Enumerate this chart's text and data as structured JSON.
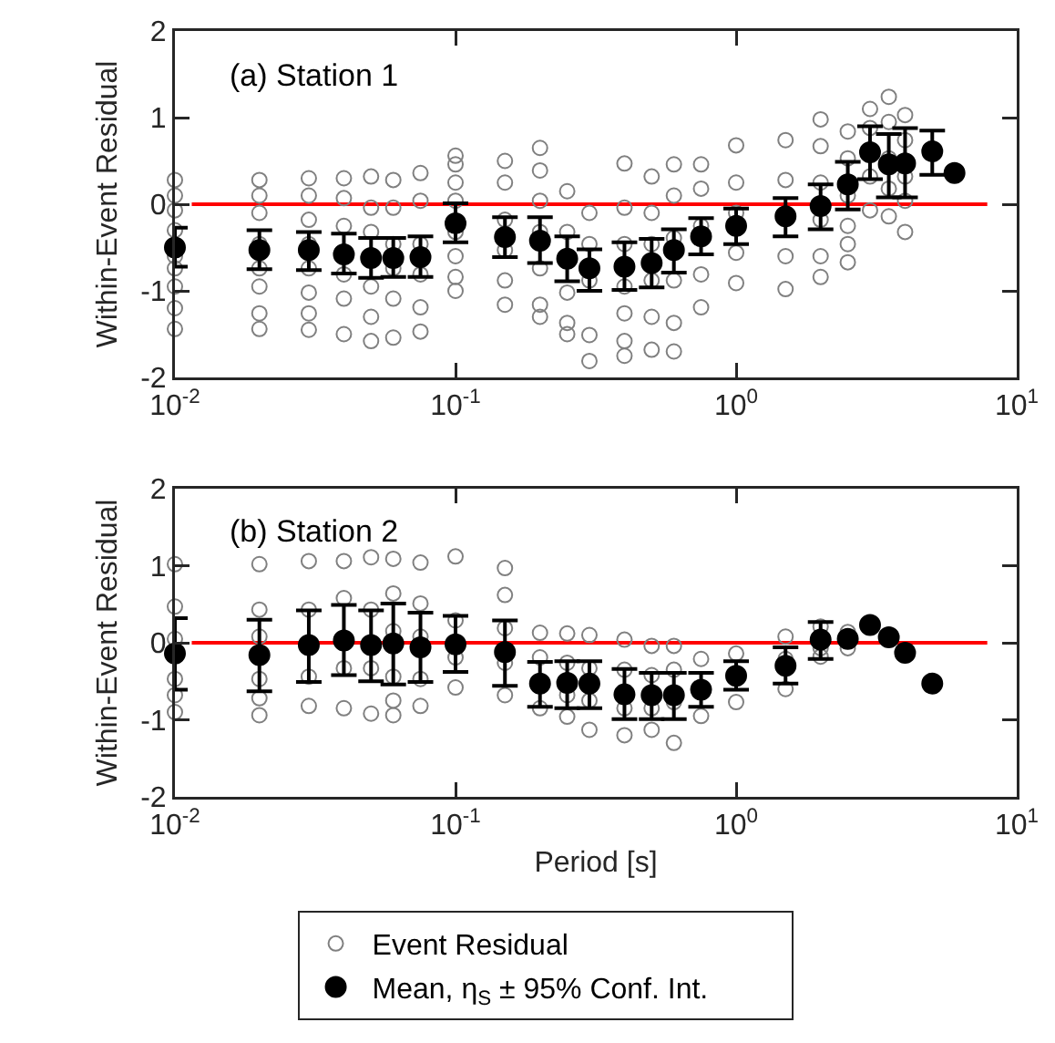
{
  "chart_data": [
    {
      "type": "scatter",
      "ylabel": "Within-Event Residual",
      "annotations": [
        "(a) Station 1"
      ],
      "log": "x",
      "grid": false,
      "legend": false,
      "marker": "circle",
      "xlim": [
        0.01,
        10
      ],
      "xticks": [
        {
          "value": 0.01,
          "label": "10$^{-2}$"
        },
        {
          "value": 0.1,
          "label": "10$^{-1}$"
        },
        {
          "value": 1,
          "label": "10$^{0}$"
        },
        {
          "value": 10,
          "label": "10$^{1}$"
        }
      ],
      "ylim": [
        -2,
        2
      ],
      "yticks": [
        -2,
        -1,
        0,
        1,
        2
      ],
      "ref_lines": [
        {
          "axis": "y",
          "value": 0,
          "color": "#ff0000"
        }
      ],
      "series": [
        {
          "color": "#808080",
          "x": [
            0.01,
            0.01,
            0.01,
            0.01,
            0.01,
            0.01,
            0.01,
            0.01,
            0.01,
            0.02,
            0.02,
            0.02,
            0.02,
            0.02,
            0.02,
            0.02,
            0.02,
            0.03,
            0.03,
            0.03,
            0.03,
            0.03,
            0.03,
            0.03,
            0.03,
            0.04,
            0.04,
            0.04,
            0.04,
            0.04,
            0.04,
            0.05,
            0.05,
            0.05,
            0.05,
            0.05,
            0.05,
            0.06,
            0.06,
            0.06,
            0.06,
            0.06,
            0.06,
            0.075,
            0.075,
            0.075,
            0.075,
            0.075,
            0.075,
            0.1,
            0.1,
            0.1,
            0.1,
            0.1,
            0.1,
            0.1,
            0.1,
            0.15,
            0.15,
            0.15,
            0.15,
            0.15,
            0.15,
            0.2,
            0.2,
            0.2,
            0.2,
            0.2,
            0.2,
            0.2,
            0.25,
            0.25,
            0.25,
            0.25,
            0.25,
            0.3,
            0.3,
            0.3,
            0.3,
            0.3,
            0.4,
            0.4,
            0.4,
            0.4,
            0.4,
            0.4,
            0.4,
            0.5,
            0.5,
            0.5,
            0.5,
            0.5,
            0.5,
            0.6,
            0.6,
            0.6,
            0.6,
            0.6,
            0.6,
            0.75,
            0.75,
            0.75,
            0.75,
            0.75,
            1,
            1,
            1,
            1,
            1,
            1.5,
            1.5,
            1.5,
            1.5,
            2,
            2,
            2,
            2,
            2,
            2,
            2.5,
            2.5,
            2.5,
            2.5,
            2.5,
            2.5,
            3,
            3,
            3,
            3,
            3.5,
            3.5,
            3.5,
            3.5,
            3.5,
            4,
            4,
            4,
            4,
            4
          ],
          "values": [
            0.28,
            0.1,
            -0.07,
            -0.3,
            -0.6,
            -0.74,
            -0.95,
            -1.2,
            -1.44,
            0.28,
            0.1,
            -0.1,
            -0.46,
            -0.74,
            -0.95,
            -1.26,
            -1.44,
            0.3,
            0.1,
            -0.18,
            -0.46,
            -0.74,
            -1.02,
            -1.26,
            -1.45,
            0.3,
            0.07,
            -0.25,
            -0.81,
            -1.09,
            -1.5,
            0.32,
            -0.04,
            -0.32,
            -0.95,
            -1.3,
            -1.58,
            0.28,
            -0.04,
            -0.46,
            -0.74,
            -1.09,
            -1.54,
            0.36,
            0.04,
            -0.46,
            -0.81,
            -1.19,
            -1.47,
            0.56,
            0.46,
            0.25,
            0.04,
            -0.32,
            -0.6,
            -0.84,
            -1.0,
            0.5,
            0.25,
            -0.18,
            -0.53,
            -0.88,
            -1.16,
            0.65,
            0.39,
            0.04,
            -0.32,
            -0.74,
            -1.16,
            -1.3,
            0.15,
            -0.32,
            -1.02,
            -1.37,
            -1.5,
            -0.1,
            -0.46,
            -0.88,
            -1.51,
            -1.81,
            0.47,
            -0.04,
            -0.46,
            -0.95,
            -1.26,
            -1.58,
            -1.75,
            0.32,
            -0.1,
            -0.46,
            -0.88,
            -1.3,
            -1.68,
            0.46,
            0.1,
            -0.39,
            -0.88,
            -1.37,
            -1.7,
            0.46,
            0.18,
            -0.25,
            -0.81,
            -1.19,
            0.68,
            0.25,
            -0.1,
            -0.56,
            -0.91,
            0.74,
            0.28,
            -0.6,
            -0.98,
            0.98,
            0.67,
            0.25,
            -0.18,
            -0.6,
            -0.84,
            0.84,
            0.53,
            0.1,
            -0.25,
            -0.46,
            -0.67,
            1.1,
            0.88,
            0.32,
            -0.07,
            1.24,
            0.95,
            0.53,
            0.18,
            -0.14,
            1.03,
            0.74,
            0.32,
            0.04,
            -0.32
          ]
        },
        {
          "color": "#000000",
          "x": [
            0.01,
            0.02,
            0.03,
            0.04,
            0.05,
            0.06,
            0.075,
            0.1,
            0.15,
            0.2,
            0.25,
            0.3,
            0.4,
            0.5,
            0.6,
            0.75,
            1,
            1.5,
            2,
            2.5,
            3,
            3.5,
            4,
            5,
            6
          ],
          "values": [
            -0.5,
            -0.53,
            -0.53,
            -0.58,
            -0.62,
            -0.62,
            -0.61,
            -0.22,
            -0.38,
            -0.42,
            -0.63,
            -0.74,
            -0.72,
            -0.68,
            -0.53,
            -0.37,
            -0.25,
            -0.14,
            -0.02,
            0.23,
            0.6,
            0.46,
            0.47,
            0.61,
            0.36
          ],
          "errors": [
            [
              -0.72,
              -0.27
            ],
            [
              -0.75,
              -0.3
            ],
            [
              -0.76,
              -0.32
            ],
            [
              -0.8,
              -0.34
            ],
            [
              -0.85,
              -0.39
            ],
            [
              -0.84,
              -0.39
            ],
            [
              -0.84,
              -0.37
            ],
            [
              -0.44,
              0.01
            ],
            [
              -0.61,
              -0.15
            ],
            [
              -0.68,
              -0.15
            ],
            [
              -0.89,
              -0.37
            ],
            [
              -1.0,
              -0.52
            ],
            [
              -0.99,
              -0.44
            ],
            [
              -0.96,
              -0.4
            ],
            [
              -0.79,
              -0.29
            ],
            [
              -0.58,
              -0.16
            ],
            [
              -0.46,
              -0.05
            ],
            [
              -0.37,
              0.07
            ],
            [
              -0.29,
              0.23
            ],
            [
              -0.06,
              0.49
            ],
            [
              0.29,
              0.9
            ],
            [
              0.08,
              0.81
            ],
            [
              0.08,
              0.88
            ],
            [
              0.34,
              0.85
            ],
            null
          ]
        }
      ]
    },
    {
      "type": "scatter",
      "xlabel": "Period [s]",
      "ylabel": "Within-Event Residual",
      "annotations": [
        "(b) Station 2"
      ],
      "log": "x",
      "grid": false,
      "legend": "bottom",
      "marker": "circle",
      "xlim": [
        0.01,
        10
      ],
      "xticks": [
        {
          "value": 0.01,
          "label": "10$^{-2}$"
        },
        {
          "value": 0.1,
          "label": "10$^{-1}$"
        },
        {
          "value": 1,
          "label": "10$^{0}$"
        },
        {
          "value": 10,
          "label": "10$^{1}$"
        }
      ],
      "ylim": [
        -2,
        2
      ],
      "yticks": [
        -2,
        -1,
        0,
        1,
        2
      ],
      "ref_lines": [
        {
          "axis": "y",
          "value": 0,
          "color": "#ff0000"
        }
      ],
      "series": [
        {
          "name": "Event Residual",
          "color": "#808080",
          "x": [
            0.01,
            0.01,
            0.01,
            0.01,
            0.01,
            0.01,
            0.02,
            0.02,
            0.02,
            0.02,
            0.02,
            0.02,
            0.03,
            0.03,
            0.03,
            0.03,
            0.04,
            0.04,
            0.04,
            0.04,
            0.05,
            0.05,
            0.05,
            0.05,
            0.06,
            0.06,
            0.06,
            0.06,
            0.06,
            0.06,
            0.075,
            0.075,
            0.075,
            0.075,
            0.075,
            0.1,
            0.1,
            0.1,
            0.1,
            0.15,
            0.15,
            0.15,
            0.15,
            0.15,
            0.2,
            0.2,
            0.2,
            0.25,
            0.25,
            0.25,
            0.25,
            0.3,
            0.3,
            0.3,
            0.3,
            0.4,
            0.4,
            0.4,
            0.4,
            0.5,
            0.5,
            0.5,
            0.5,
            0.6,
            0.6,
            0.6,
            0.6,
            0.75,
            0.75,
            1,
            1,
            1.5,
            1.5,
            1.5,
            2,
            2,
            2,
            2.5,
            2.5
          ],
          "values": [
            1.02,
            0.47,
            0.05,
            -0.47,
            -0.68,
            -0.9,
            1.02,
            0.43,
            0.08,
            -0.47,
            -0.72,
            -0.94,
            1.06,
            0.43,
            -0.44,
            -0.82,
            1.06,
            0.58,
            -0.33,
            -0.85,
            1.11,
            0.43,
            -0.33,
            -0.92,
            1.09,
            0.64,
            0.15,
            -0.44,
            -0.75,
            -0.94,
            1.04,
            0.51,
            0.08,
            -0.47,
            -0.82,
            1.12,
            0.29,
            -0.19,
            -0.58,
            0.97,
            0.62,
            0.19,
            -0.26,
            -0.68,
            0.13,
            -0.19,
            -0.85,
            0.12,
            -0.26,
            -0.68,
            -0.96,
            0.1,
            -0.33,
            -0.75,
            -1.13,
            0.04,
            -0.35,
            -0.85,
            -1.2,
            -0.04,
            -0.42,
            -0.85,
            -1.13,
            -0.04,
            -0.35,
            -0.77,
            -1.3,
            -0.21,
            -0.95,
            -0.14,
            -0.77,
            0.08,
            -0.21,
            -0.6,
            0.21,
            -0.07,
            -0.18,
            0.14,
            -0.07
          ]
        },
        {
          "name": "Mean, η$_{S}$ ± 95% Conf. Int.",
          "color": "#000000",
          "x": [
            0.01,
            0.02,
            0.03,
            0.04,
            0.05,
            0.06,
            0.075,
            0.1,
            0.15,
            0.2,
            0.25,
            0.3,
            0.4,
            0.5,
            0.6,
            0.75,
            1,
            1.5,
            2,
            2.5,
            3,
            3.5,
            4,
            5
          ],
          "values": [
            -0.14,
            -0.16,
            -0.03,
            0.03,
            -0.03,
            -0.01,
            -0.06,
            -0.02,
            -0.12,
            -0.53,
            -0.52,
            -0.53,
            -0.67,
            -0.68,
            -0.68,
            -0.61,
            -0.43,
            -0.3,
            0.04,
            0.05,
            0.23,
            0.07,
            -0.13,
            -0.53
          ],
          "errors": [
            [
              -0.61,
              0.32
            ],
            [
              -0.63,
              0.3
            ],
            [
              -0.51,
              0.42
            ],
            [
              -0.42,
              0.49
            ],
            [
              -0.5,
              0.42
            ],
            [
              -0.54,
              0.51
            ],
            [
              -0.51,
              0.39
            ],
            [
              -0.38,
              0.35
            ],
            [
              -0.56,
              0.29
            ],
            [
              -0.83,
              -0.25
            ],
            [
              -0.85,
              -0.24
            ],
            [
              -0.85,
              -0.24
            ],
            [
              -0.99,
              -0.34
            ],
            [
              -0.99,
              -0.39
            ],
            [
              -0.99,
              -0.39
            ],
            [
              -0.83,
              -0.39
            ],
            [
              -0.61,
              -0.24
            ],
            [
              -0.53,
              -0.06
            ],
            [
              -0.21,
              0.27
            ],
            null,
            null,
            null,
            null,
            null
          ]
        }
      ]
    }
  ]
}
